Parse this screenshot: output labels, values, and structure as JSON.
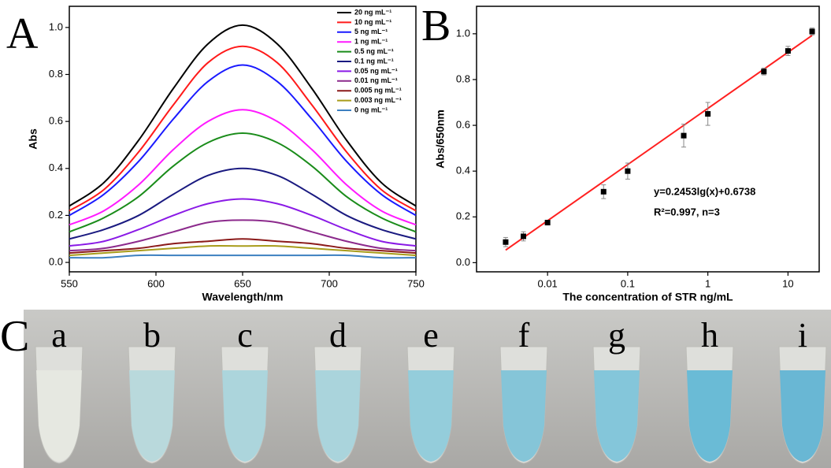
{
  "chart_data": [
    {
      "type": "line",
      "panel_label": "A",
      "x_label": "Wavelength/nm",
      "y_label": "Abs",
      "x": [
        550,
        570,
        590,
        610,
        630,
        650,
        670,
        690,
        710,
        730,
        750
      ],
      "xlim": [
        550,
        750
      ],
      "xticks": [
        550,
        600,
        650,
        700,
        750
      ],
      "ylim": [
        -0.04,
        1.09
      ],
      "yticks": [
        {
          "value": 0,
          "label": "0.0"
        },
        0.2,
        0.4,
        0.6,
        0.8,
        {
          "value": 1,
          "label": "1.0"
        }
      ],
      "legend": "top-right",
      "series": [
        {
          "name": "20 ng mL⁻¹",
          "color": "#000000",
          "values": [
            0.24,
            0.34,
            0.52,
            0.74,
            0.93,
            1.01,
            0.93,
            0.74,
            0.52,
            0.34,
            0.24
          ]
        },
        {
          "name": "10 ng mL⁻¹",
          "color": "#ff1a1a",
          "values": [
            0.22,
            0.31,
            0.47,
            0.67,
            0.85,
            0.92,
            0.85,
            0.67,
            0.47,
            0.31,
            0.22
          ]
        },
        {
          "name": "5 ng mL⁻¹",
          "color": "#1a1aff",
          "values": [
            0.2,
            0.29,
            0.43,
            0.61,
            0.77,
            0.84,
            0.77,
            0.61,
            0.43,
            0.29,
            0.2
          ]
        },
        {
          "name": "1 ng mL⁻¹",
          "color": "#ff1aff",
          "values": [
            0.16,
            0.22,
            0.33,
            0.48,
            0.6,
            0.65,
            0.6,
            0.48,
            0.33,
            0.22,
            0.16
          ]
        },
        {
          "name": "0.5 ng mL⁻¹",
          "color": "#1a8c1a",
          "values": [
            0.13,
            0.19,
            0.28,
            0.41,
            0.51,
            0.55,
            0.51,
            0.41,
            0.28,
            0.19,
            0.13
          ]
        },
        {
          "name": "0.1 ng mL⁻¹",
          "color": "#1a1a80",
          "values": [
            0.1,
            0.14,
            0.2,
            0.29,
            0.37,
            0.4,
            0.37,
            0.29,
            0.2,
            0.14,
            0.1
          ]
        },
        {
          "name": "0.05 ng mL⁻¹",
          "color": "#8a1ae6",
          "values": [
            0.07,
            0.09,
            0.14,
            0.2,
            0.25,
            0.27,
            0.25,
            0.2,
            0.14,
            0.09,
            0.07
          ]
        },
        {
          "name": "0.01 ng mL⁻¹",
          "color": "#8c2a8c",
          "values": [
            0.05,
            0.06,
            0.09,
            0.13,
            0.17,
            0.18,
            0.17,
            0.13,
            0.09,
            0.06,
            0.05
          ]
        },
        {
          "name": "0.005 ng mL⁻¹",
          "color": "#8b1a1a",
          "values": [
            0.04,
            0.05,
            0.06,
            0.08,
            0.09,
            0.1,
            0.09,
            0.08,
            0.06,
            0.05,
            0.04
          ]
        },
        {
          "name": "0.003 ng mL⁻¹",
          "color": "#a89c1a",
          "values": [
            0.03,
            0.04,
            0.05,
            0.06,
            0.07,
            0.07,
            0.07,
            0.06,
            0.05,
            0.04,
            0.03
          ]
        },
        {
          "name": "0 ng mL⁻¹",
          "color": "#3d80c0",
          "values": [
            0.02,
            0.02,
            0.03,
            0.03,
            0.03,
            0.03,
            0.03,
            0.03,
            0.03,
            0.02,
            0.02
          ]
        }
      ]
    },
    {
      "type": "scatter",
      "panel_label": "B",
      "x_label": "The concentration of STR ng/mL",
      "y_label": "Abs/650nm",
      "log_x": true,
      "x": [
        0.003,
        0.005,
        0.01,
        0.05,
        0.1,
        0.5,
        1,
        5,
        10,
        20
      ],
      "values": [
        0.09,
        0.115,
        0.175,
        0.31,
        0.4,
        0.555,
        0.65,
        0.835,
        0.925,
        1.01
      ],
      "errors": [
        0.02,
        0.02,
        0.01,
        0.03,
        0.035,
        0.05,
        0.05,
        0.015,
        0.02,
        0.015
      ],
      "color": "#000000",
      "fit": {
        "color": "#ff2020",
        "x": [
          0.003,
          20
        ],
        "values": [
          0.055,
          0.993
        ]
      },
      "annotations": [
        "y=0.2453lg(x)+0.6738",
        "R²=0.997, n=3"
      ],
      "xlim": [
        0.0013,
        24.5
      ],
      "xticks": [
        0.01,
        0.1,
        1,
        10
      ],
      "ylim": [
        -0.04,
        1.12
      ],
      "yticks": [
        {
          "value": 0,
          "label": "0.0"
        },
        0.2,
        0.4,
        0.6,
        0.8,
        {
          "value": 1,
          "label": "1.0"
        }
      ]
    }
  ],
  "photo": {
    "panel_label": "C",
    "tubes": [
      "a",
      "b",
      "c",
      "d",
      "e",
      "f",
      "g",
      "h",
      "i"
    ],
    "tube_colors": [
      "#e6e8e2",
      "#b6d8dc",
      "#a9d4dc",
      "#a6d3dc",
      "#8fcbdb",
      "#7fc3d8",
      "#7ec4da",
      "#63b8d6",
      "#62b4d4"
    ]
  }
}
